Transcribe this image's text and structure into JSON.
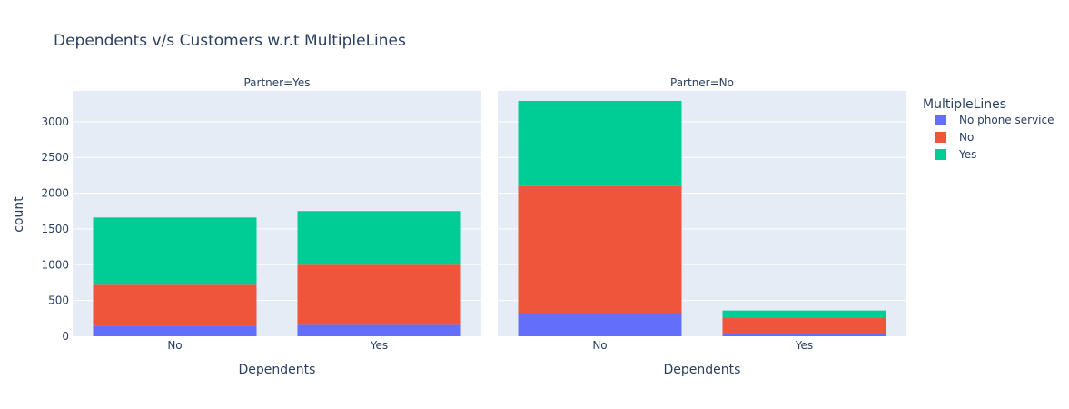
{
  "chart_data": {
    "type": "bar",
    "barmode": "stack",
    "title": "Dependents v/s Customers w.r.t MultipleLines",
    "ylabel": "count",
    "ylim": [
      0,
      3430
    ],
    "yticks": [
      0,
      500,
      1000,
      1500,
      2000,
      2500,
      3000
    ],
    "grid": true,
    "legend_position": "top-right",
    "legend_title": "MultipleLines",
    "series_colors": [
      "#636efa",
      "#ef553b",
      "#00cc96"
    ],
    "panels": [
      {
        "facet_label": "Partner=Yes",
        "xlabel": "Dependents",
        "categories": [
          "No",
          "Yes"
        ],
        "series": [
          {
            "name": "No phone service",
            "values": [
              145,
              160
            ]
          },
          {
            "name": "No",
            "values": [
              575,
              840
            ]
          },
          {
            "name": "Yes",
            "values": [
              940,
              750
            ]
          }
        ]
      },
      {
        "facet_label": "Partner=No",
        "xlabel": "Dependents",
        "categories": [
          "No",
          "Yes"
        ],
        "series": [
          {
            "name": "No phone service",
            "values": [
              330,
              50
            ]
          },
          {
            "name": "No",
            "values": [
              1770,
              210
            ]
          },
          {
            "name": "Yes",
            "values": [
              1190,
              100
            ]
          }
        ]
      }
    ]
  }
}
